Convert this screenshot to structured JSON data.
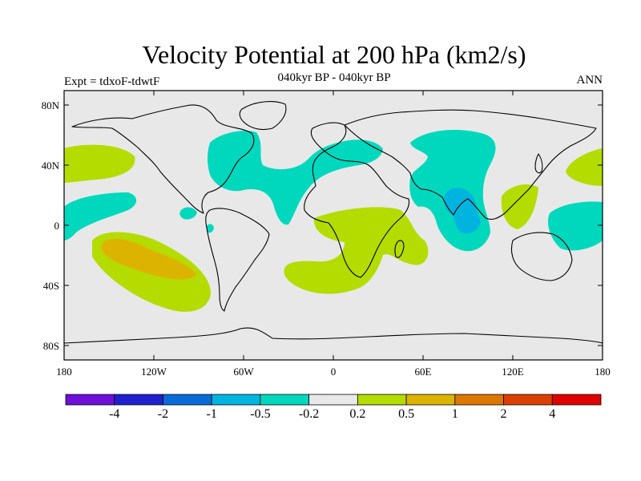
{
  "title": "Velocity Potential at 200 hPa (km2/s)",
  "subtitle": "040kyr BP - 040kyr BP",
  "left_label": "Expt = tdxoF-tdwtF",
  "right_label": "ANN",
  "lat_ticks": [
    "80N",
    "40N",
    "0",
    "40S",
    "80S"
  ],
  "lon_ticks": [
    "180",
    "120W",
    "60W",
    "0",
    "60E",
    "120E",
    "180"
  ],
  "colorbar": {
    "colors": [
      "#6e10d8",
      "#2020d0",
      "#0a6ad8",
      "#00b4e0",
      "#00d8be",
      "#e8e8e8",
      "#b4dc00",
      "#dcb400",
      "#dc7800",
      "#dc4000",
      "#e00000"
    ],
    "labels": [
      "-4",
      "-2",
      "-1",
      "-0.5",
      "-0.2",
      "0.2",
      "0.5",
      "1",
      "2",
      "4"
    ]
  },
  "colors": {
    "ocean_bg": "#e8e8e8",
    "neg_light": "#00d8be",
    "neg_mid": "#00b4e0",
    "pos_light": "#b4dc00",
    "pos_mid": "#dcb400"
  }
}
